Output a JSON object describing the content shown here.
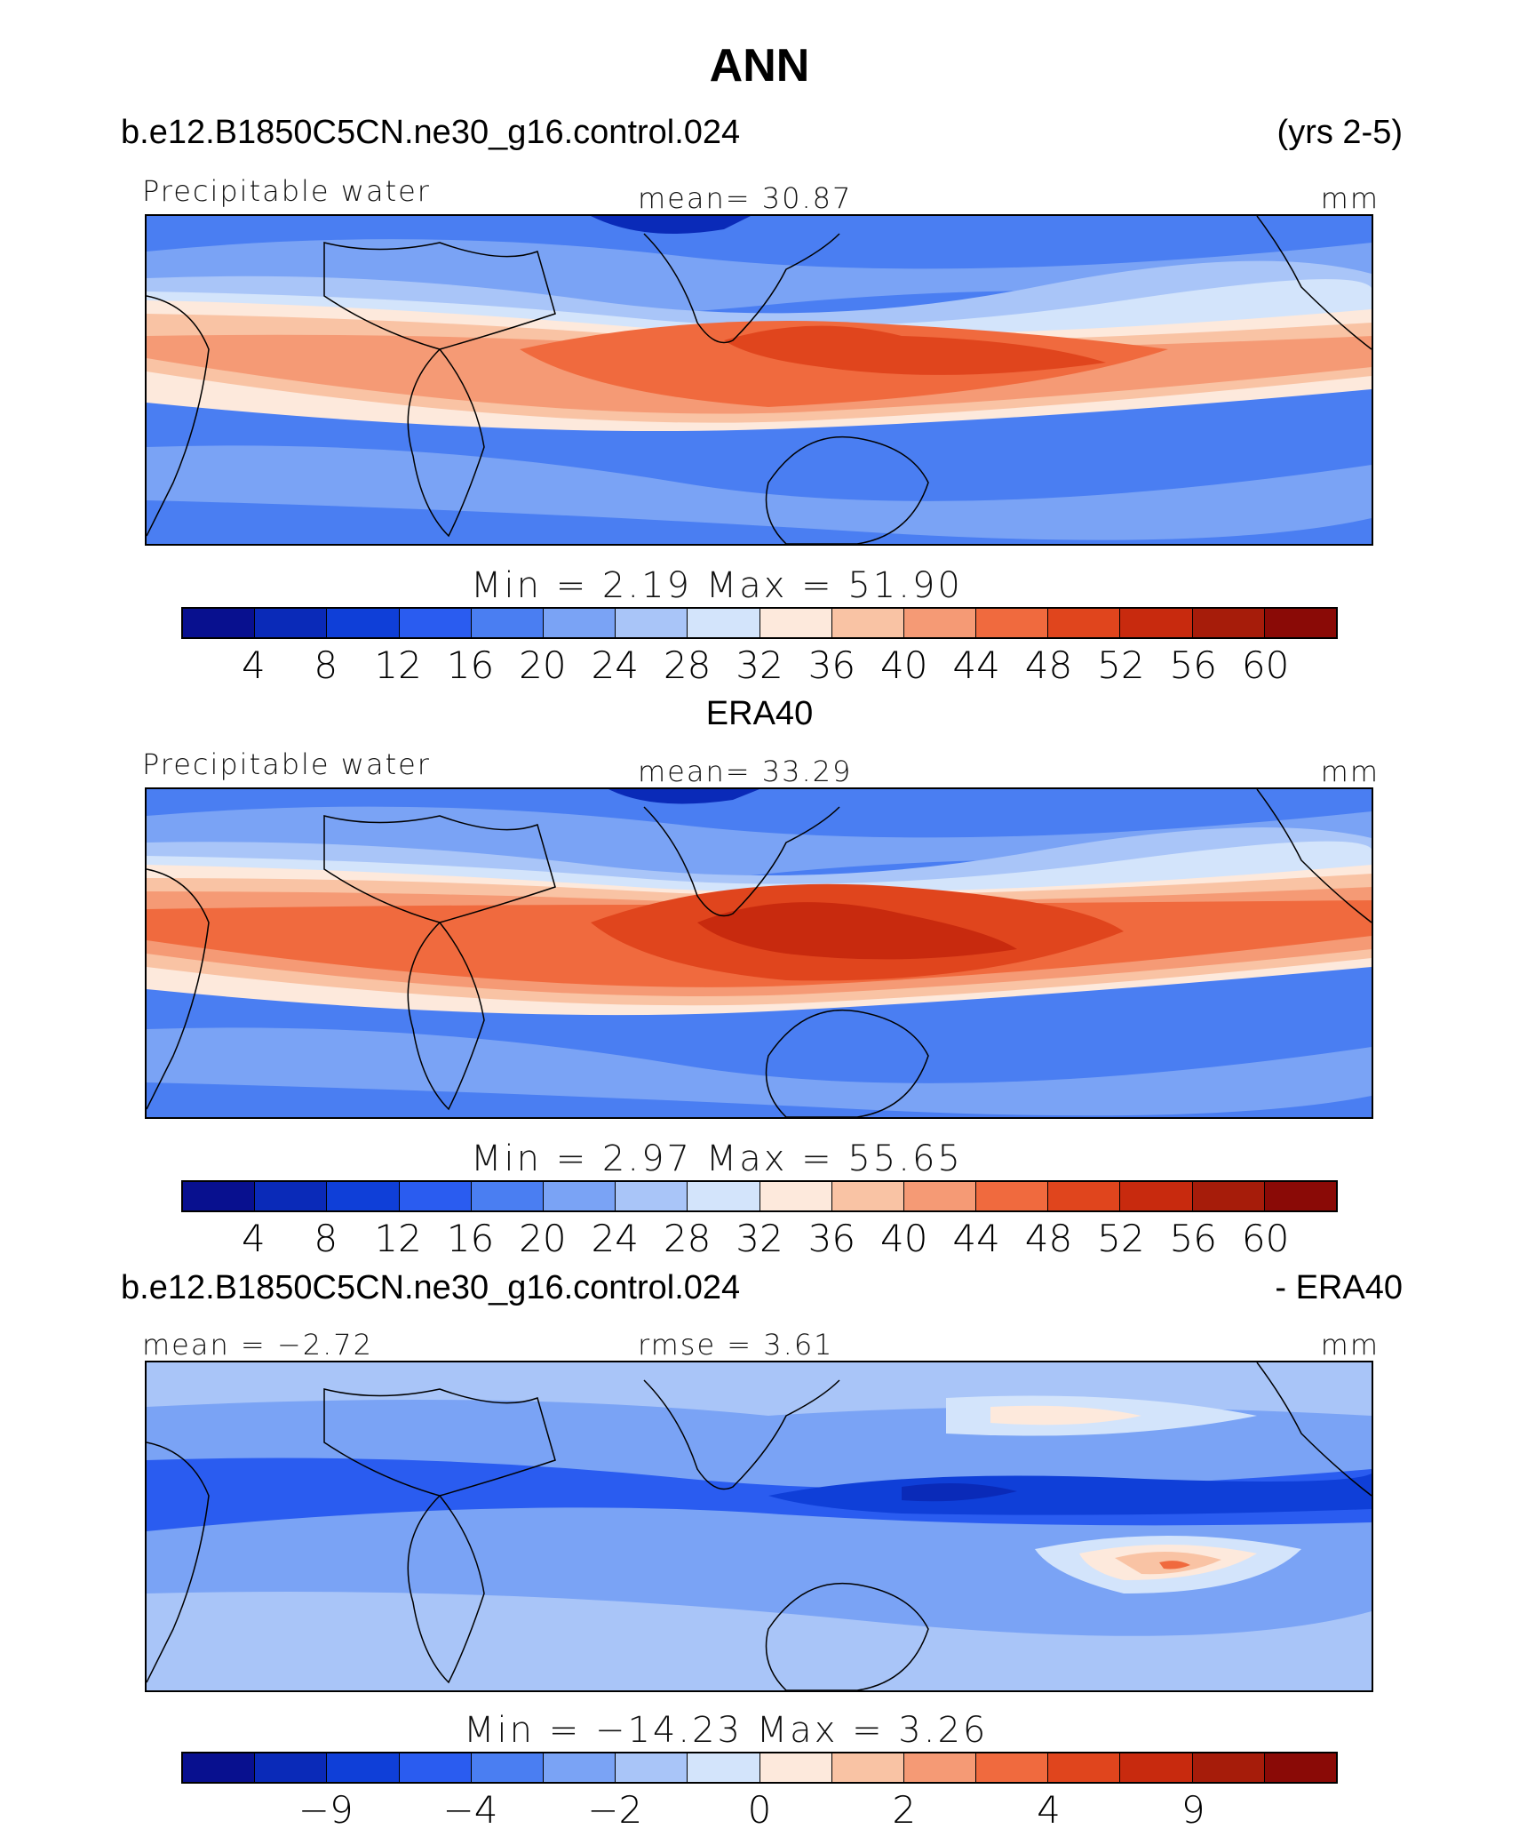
{
  "title": "ANN",
  "case_name": "b.e12.B1850C5CN.ne30_g16.control.024",
  "years": "(yrs 2-5)",
  "obs_name": "ERA40",
  "diff_suffix": "- ERA40",
  "variable": "Precipitable water",
  "units": "mm",
  "panels": [
    {
      "left_label": "Precipitable water",
      "center_label": "mean=   30.87",
      "right_label": "mm",
      "minmax": "Min  =     2.19  Max  =    51.90",
      "ticks": [
        "4",
        "8",
        "12",
        "16",
        "20",
        "24",
        "28",
        "32",
        "36",
        "40",
        "44",
        "48",
        "52",
        "56",
        "60"
      ]
    },
    {
      "left_label": "Precipitable water",
      "center_label": "mean=   33.29",
      "right_label": "mm",
      "minmax": "Min  =     2.97  Max  =    55.65",
      "ticks": [
        "4",
        "8",
        "12",
        "16",
        "20",
        "24",
        "28",
        "32",
        "36",
        "40",
        "44",
        "48",
        "52",
        "56",
        "60"
      ]
    },
    {
      "left_label": "mean  =   −2.72",
      "center_label": "rmse  =     3.61",
      "right_label": "mm",
      "minmax": "Min  =  −14.23  Max  =     3.26",
      "ticks": [
        "−9",
        "−4",
        "−2",
        "0",
        "2",
        "4",
        "9"
      ]
    }
  ],
  "colormap": [
    "#08108f",
    "#0a2ab8",
    "#0f3fd8",
    "#2a5cf0",
    "#4a7ef2",
    "#7aa3f5",
    "#a9c5f8",
    "#d3e4fb",
    "#fde9dc",
    "#f9c3a4",
    "#f59a75",
    "#f06a3e",
    "#e0451d",
    "#c82a0e",
    "#a61c0a",
    "#8a0a06"
  ]
}
